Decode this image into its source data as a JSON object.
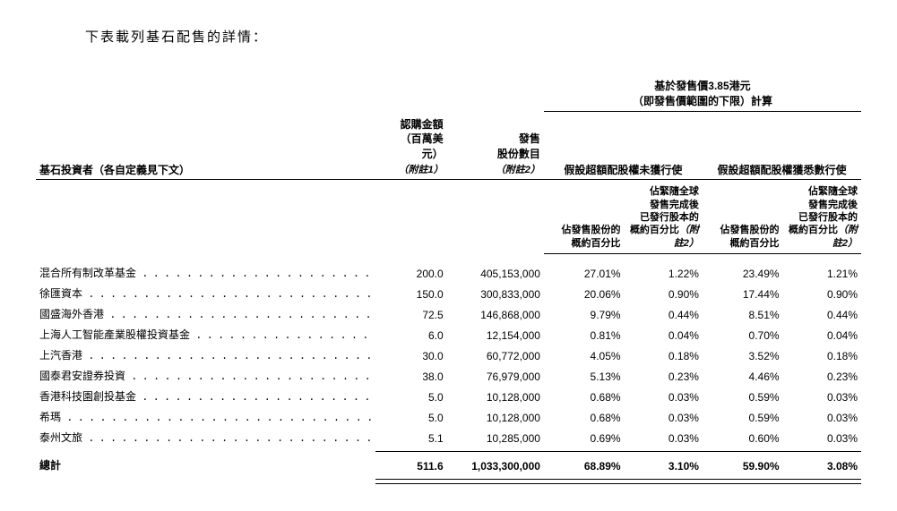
{
  "intro": "下表載列基石配售的詳情：",
  "headers": {
    "top_line1": "基於發售價3.85港元",
    "top_line2": "（即發售價範圍的下限）計算",
    "investor_label": "基石投資者（各自定義見下文）",
    "amount_line1": "認購金額",
    "amount_line2": "（百萬美元）",
    "amount_note": "（附註1）",
    "shares_line1": "發售",
    "shares_line2": "股份數目",
    "shares_note": "（附註2）",
    "group_no_over": "假設超額配股權未獲行使",
    "group_over": "假設超額配股權獲悉數行使",
    "pct_offer_line1": "佔發售股份的",
    "pct_offer_line2": "概約百分比",
    "pct_capital_line1": "佔緊隨全球",
    "pct_capital_line2": "發售完成後",
    "pct_capital_line3": "已發行股本的",
    "pct_capital_line4": "概約百分比",
    "pct_capital_note": "（附註2）"
  },
  "rows": [
    {
      "name": "混合所有制改革基金",
      "amount": "200.0",
      "shares": "405,153,000",
      "p1": "27.01%",
      "p2": "1.22%",
      "p3": "23.49%",
      "p4": "1.21%"
    },
    {
      "name": "徐匯資本",
      "amount": "150.0",
      "shares": "300,833,000",
      "p1": "20.06%",
      "p2": "0.90%",
      "p3": "17.44%",
      "p4": "0.90%"
    },
    {
      "name": "國盛海外香港",
      "amount": "72.5",
      "shares": "146,868,000",
      "p1": "9.79%",
      "p2": "0.44%",
      "p3": "8.51%",
      "p4": "0.44%"
    },
    {
      "name": "上海人工智能產業股權投資基金",
      "amount": "6.0",
      "shares": "12,154,000",
      "p1": "0.81%",
      "p2": "0.04%",
      "p3": "0.70%",
      "p4": "0.04%"
    },
    {
      "name": "上汽香港",
      "amount": "30.0",
      "shares": "60,772,000",
      "p1": "4.05%",
      "p2": "0.18%",
      "p3": "3.52%",
      "p4": "0.18%"
    },
    {
      "name": "國泰君安證券投資",
      "amount": "38.0",
      "shares": "76,979,000",
      "p1": "5.13%",
      "p2": "0.23%",
      "p3": "4.46%",
      "p4": "0.23%"
    },
    {
      "name": "香港科技園創投基金",
      "amount": "5.0",
      "shares": "10,128,000",
      "p1": "0.68%",
      "p2": "0.03%",
      "p3": "0.59%",
      "p4": "0.03%"
    },
    {
      "name": "希瑪",
      "amount": "5.0",
      "shares": "10,128,000",
      "p1": "0.68%",
      "p2": "0.03%",
      "p3": "0.59%",
      "p4": "0.03%"
    },
    {
      "name": "泰州文旅",
      "amount": "5.1",
      "shares": "10,285,000",
      "p1": "0.69%",
      "p2": "0.03%",
      "p3": "0.60%",
      "p4": "0.03%"
    }
  ],
  "total": {
    "name": "總計",
    "amount": "511.6",
    "shares": "1,033,300,000",
    "p1": "68.89%",
    "p2": "3.10%",
    "p3": "59.90%",
    "p4": "3.08%"
  },
  "dots_fill": " . . . . . . . . . . . . . . . . . . . . ",
  "styling": {
    "font_size_intro": 15,
    "font_size_header": 12,
    "font_size_subheader": 11,
    "font_size_data": 12,
    "text_color": "#000000",
    "background_color": "#ffffff",
    "border_color": "#000000"
  }
}
